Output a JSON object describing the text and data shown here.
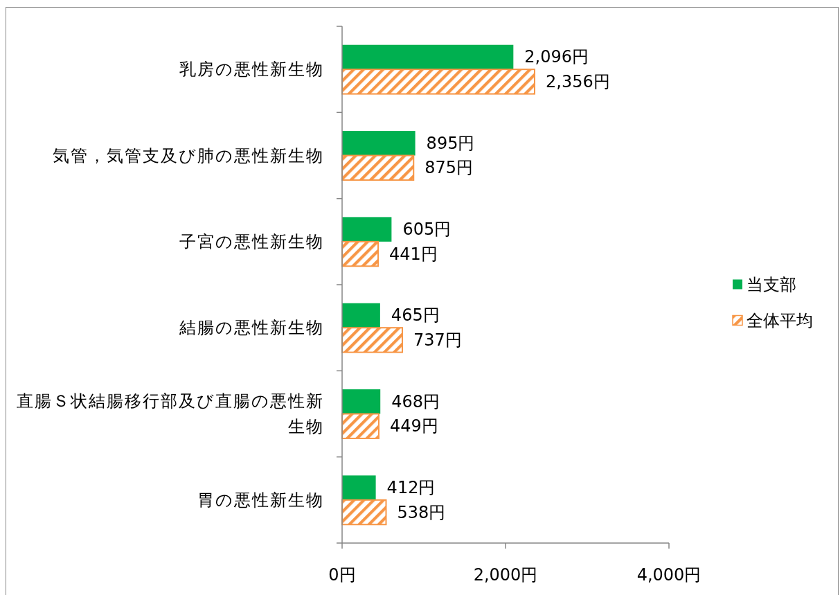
{
  "chart_data": {
    "type": "bar",
    "orientation": "horizontal",
    "categories": [
      "乳房の悪性新生物",
      "気管，気管支及び肺の悪性新生物",
      "子宮の悪性新生物",
      "結腸の悪性新生物",
      "直腸Ｓ状結腸移行部及び直腸の悪性新生物",
      "胃の悪性新生物"
    ],
    "series": [
      {
        "name": "当支部",
        "color": "#00b050",
        "values": [
          2096,
          895,
          605,
          465,
          468,
          412
        ],
        "value_labels": [
          "2,096円",
          "895円",
          "605円",
          "465円",
          "468円",
          "412円"
        ]
      },
      {
        "name": "全体平均",
        "color": "#f79646",
        "values": [
          2356,
          875,
          441,
          737,
          449,
          538
        ],
        "value_labels": [
          "2,356円",
          "875円",
          "441円",
          "737円",
          "449円",
          "538円"
        ]
      }
    ],
    "xlim": [
      0,
      4000
    ],
    "xticks": [
      {
        "value": 0,
        "label": "0円"
      },
      {
        "value": 2000,
        "label": "2,000円"
      },
      {
        "value": 4000,
        "label": "4,000円"
      }
    ],
    "legend": "right"
  }
}
